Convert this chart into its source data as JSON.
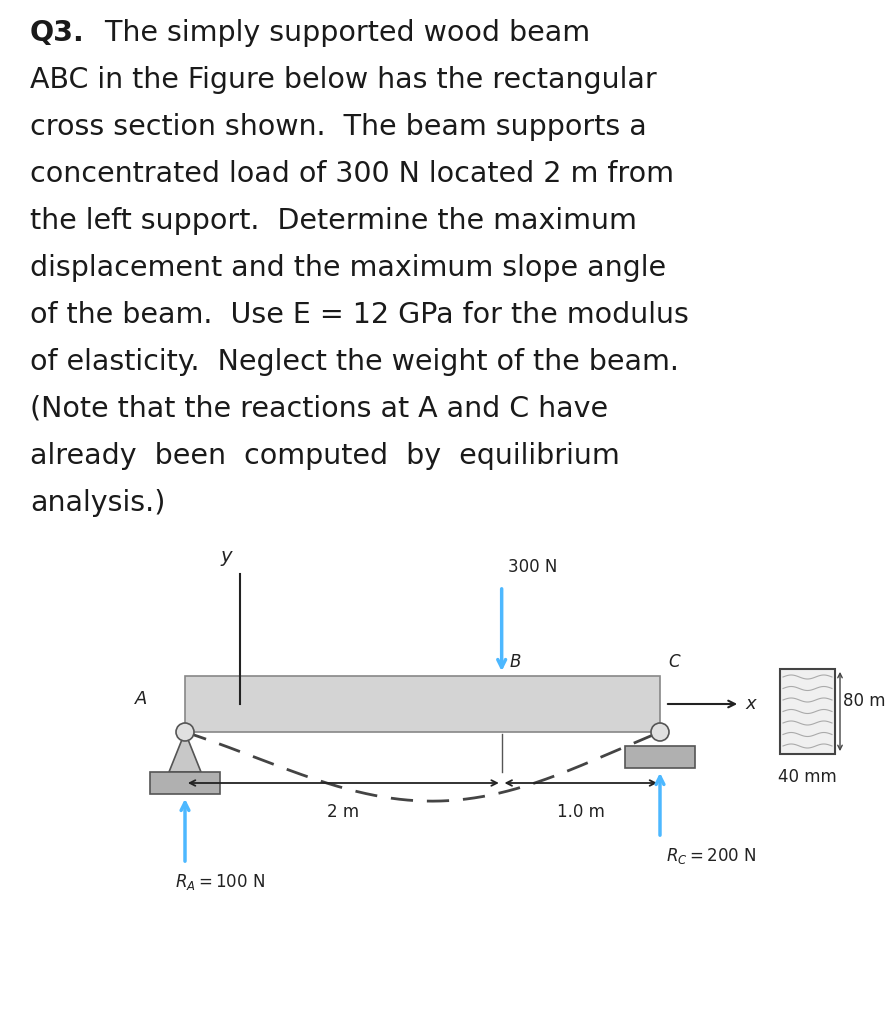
{
  "bg_color": "#ffffff",
  "text_color": "#1a1a1a",
  "arrow_color": "#4db8ff",
  "beam_color": "#d4d4d4",
  "beam_edge": "#888888",
  "support_color": "#a0a0a0",
  "ground_color": "#b0b0b0",
  "dashed_color": "#444444",
  "text_lines": [
    [
      "Q3.",
      "   The simply supported wood beam"
    ],
    [
      "ABC in the Figure below has the rectangular"
    ],
    [
      "cross section shown.  The beam supports a"
    ],
    [
      "concentrated load of 300 N located 2 m from"
    ],
    [
      "the left support.  Determine the maximum"
    ],
    [
      "displacement and the maximum slope angle"
    ],
    [
      "of the beam.  Use E = 12 GPa for the modulus"
    ],
    [
      "of elasticity.  Neglect the weight of the beam."
    ],
    [
      "(Note that the reactions at A and C have"
    ],
    [
      "already  been  computed  by  equilibrium"
    ],
    [
      "analysis.)"
    ]
  ],
  "fontsize_text": 20.5,
  "fontsize_label": 13,
  "fontsize_small": 12
}
